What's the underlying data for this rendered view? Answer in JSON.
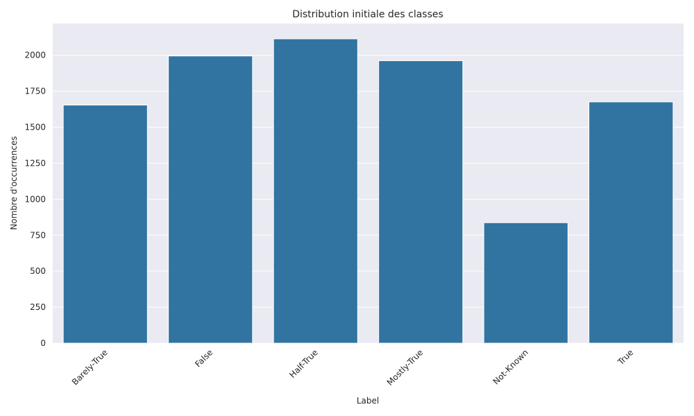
{
  "chart_data": {
    "type": "bar",
    "title": "Distribution initiale des classes",
    "xlabel": "Label",
    "ylabel": "Nombre d'occurrences",
    "categories": [
      "Barely-True",
      "False",
      "Half-True",
      "Mostly-True",
      "Not-Known",
      "True"
    ],
    "values": [
      1654,
      1995,
      2114,
      1962,
      837,
      1676
    ],
    "ylim": [
      0,
      2220
    ],
    "yticks": [
      0,
      250,
      500,
      750,
      1000,
      1250,
      1500,
      1750,
      2000
    ],
    "grid": true,
    "bar_color": "#3274a1",
    "background_color": "#eaeaf2"
  }
}
